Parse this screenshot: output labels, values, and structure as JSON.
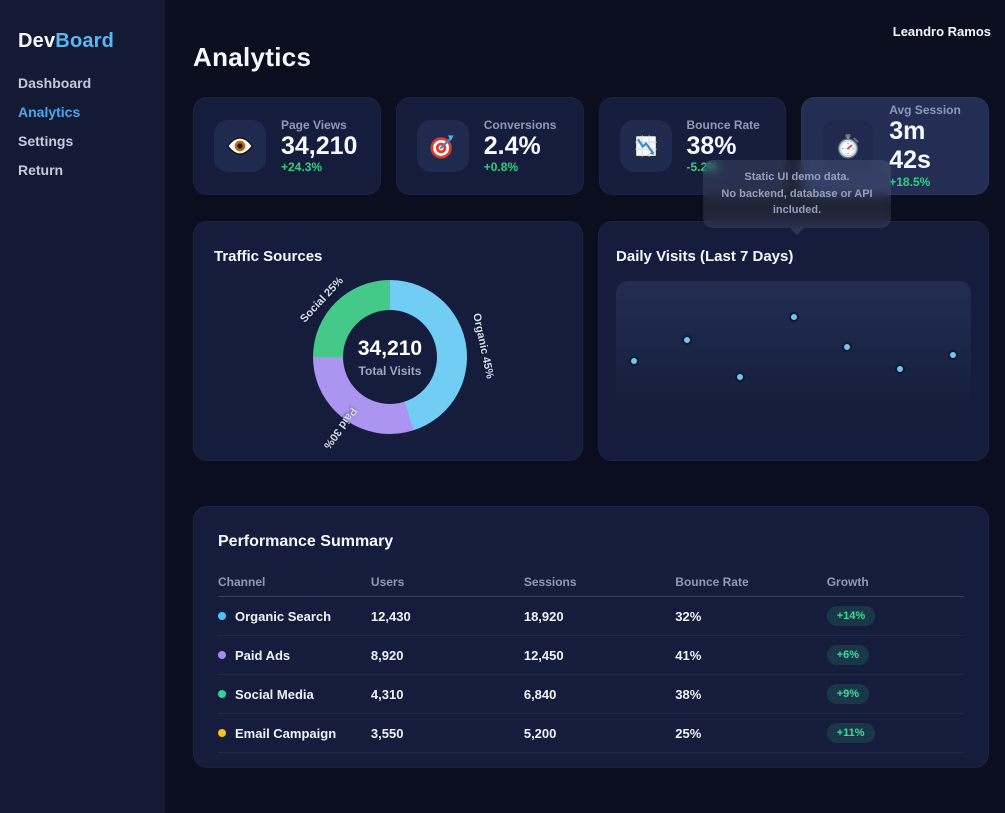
{
  "brand": {
    "name_primary": "Dev",
    "name_secondary": "Board",
    "accent_color": "#57b8f3"
  },
  "user": {
    "name": "Leandro Ramos"
  },
  "sidebar": {
    "items": [
      {
        "label": "Dashboard",
        "active": false
      },
      {
        "label": "Analytics",
        "active": true
      },
      {
        "label": "Settings",
        "active": false
      },
      {
        "label": "Return",
        "active": false
      }
    ]
  },
  "page": {
    "title": "Analytics"
  },
  "stat_cards": [
    {
      "icon": "eye-icon",
      "label": "Page Views",
      "value": "34,210",
      "delta": "+24.3%"
    },
    {
      "icon": "target-icon",
      "label": "Conversions",
      "value": "2.4%",
      "delta": "+0.8%"
    },
    {
      "icon": "chart-decreasing-icon",
      "label": "Bounce Rate",
      "value": "38%",
      "delta": "-5.2%"
    },
    {
      "icon": "stopwatch-icon",
      "label": "Avg Session",
      "value": "3m 42s",
      "delta": "+18.5%"
    }
  ],
  "delta_color": "#2fd180",
  "tooltip": {
    "line1": "Static UI demo data.",
    "line2": "No backend, database or API included."
  },
  "traffic_sources": {
    "title": "Traffic Sources"
  },
  "daily_visits": {
    "title": "Daily Visits (Last 7 Days)"
  },
  "chart_data": [
    {
      "type": "pie",
      "title": "Traffic Sources",
      "labels": [
        "Organic",
        "Paid",
        "Social"
      ],
      "values": [
        45,
        30,
        25
      ],
      "unit": "%",
      "colors": [
        "#72cdf4",
        "#ab95f0",
        "#45c988"
      ],
      "slice_labels": [
        "Organic 45%",
        "Paid 30%",
        "Social 25%"
      ],
      "center_value": "34,210",
      "center_label": "Total Visits",
      "donut": true,
      "legend_position": "rotated-labels-on-slices"
    },
    {
      "type": "scatter",
      "title": "Daily Visits (Last 7 Days)",
      "x": [
        1,
        2,
        3,
        4,
        5,
        6,
        7
      ],
      "values_relative": [
        40,
        56,
        28,
        73,
        51,
        34,
        46
      ],
      "points_percent": [
        {
          "x": 5,
          "y": 60
        },
        {
          "x": 20,
          "y": 44
        },
        {
          "x": 35,
          "y": 72
        },
        {
          "x": 50,
          "y": 27
        },
        {
          "x": 65,
          "y": 49
        },
        {
          "x": 80,
          "y": 66
        },
        {
          "x": 95,
          "y": 55
        }
      ],
      "point_color": "#6ec6f5",
      "grid": false,
      "axes_labeled": false
    }
  ],
  "table": {
    "title": "Performance Summary",
    "columns": [
      "Channel",
      "Users",
      "Sessions",
      "Bounce Rate",
      "Growth"
    ],
    "rows": [
      {
        "channel": "Organic Search",
        "dot_color": "#4fc3f7",
        "users": "12,430",
        "sessions": "18,920",
        "bounce_rate": "32%",
        "growth": "+14%"
      },
      {
        "channel": "Paid Ads",
        "dot_color": "#a78bfa",
        "users": "8,920",
        "sessions": "12,450",
        "bounce_rate": "41%",
        "growth": "+6%"
      },
      {
        "channel": "Social Media",
        "dot_color": "#34d399",
        "users": "4,310",
        "sessions": "6,840",
        "bounce_rate": "38%",
        "growth": "+9%"
      },
      {
        "channel": "Email Campaign",
        "dot_color": "#fbbf24",
        "users": "3,550",
        "sessions": "5,200",
        "bounce_rate": "25%",
        "growth": "+11%"
      }
    ],
    "growth_badge_colors": {
      "bg": "rgba(52,211,153,0.15)",
      "text": "#3ddc97"
    }
  }
}
